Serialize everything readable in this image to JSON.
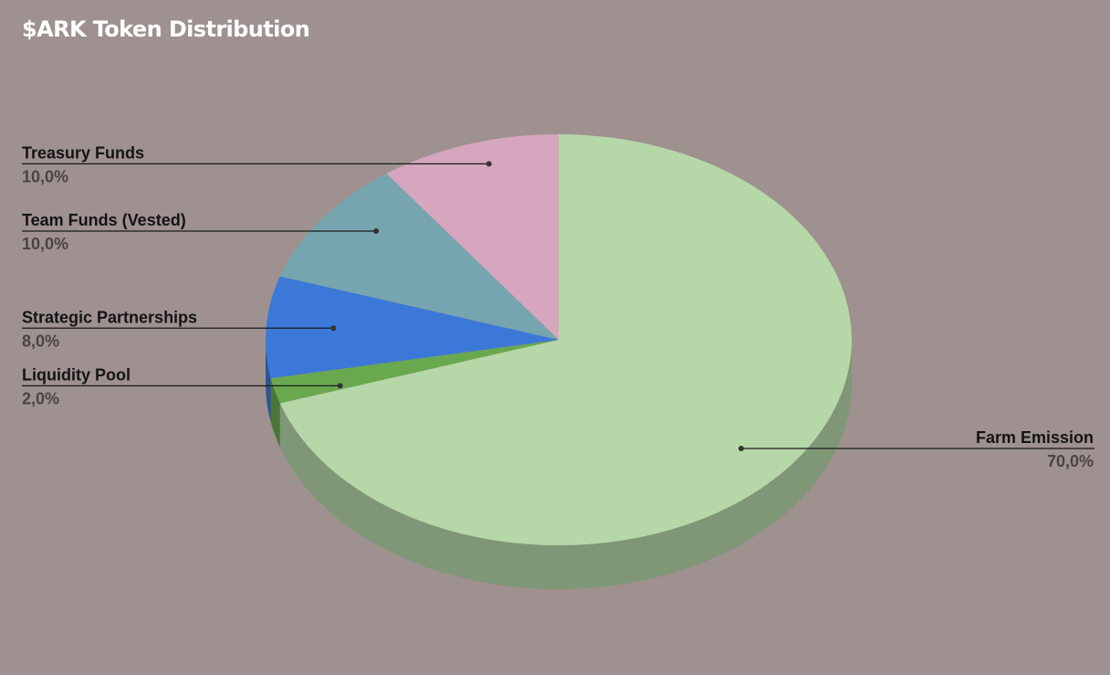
{
  "chart_data": {
    "type": "pie",
    "title": "$ARK Token Distribution",
    "three_d": true,
    "slices": [
      {
        "label": "Farm Emission",
        "value": 70.0,
        "display": "70,0%",
        "color": "#b6d7a8"
      },
      {
        "label": "Liquidity Pool",
        "value": 2.0,
        "display": "2,0%",
        "color": "#6aa84f"
      },
      {
        "label": "Strategic Partnerships",
        "value": 8.0,
        "display": "8,0%",
        "color": "#3c78d8"
      },
      {
        "label": "Team Funds (Vested)",
        "value": 10.0,
        "display": "10,0%",
        "color": "#76a5af"
      },
      {
        "label": "Treasury Funds",
        "value": 10.0,
        "display": "10,0%",
        "color": "#d5a6bd"
      }
    ],
    "legend": "none",
    "label_position": "outside-with-leader-lines"
  }
}
